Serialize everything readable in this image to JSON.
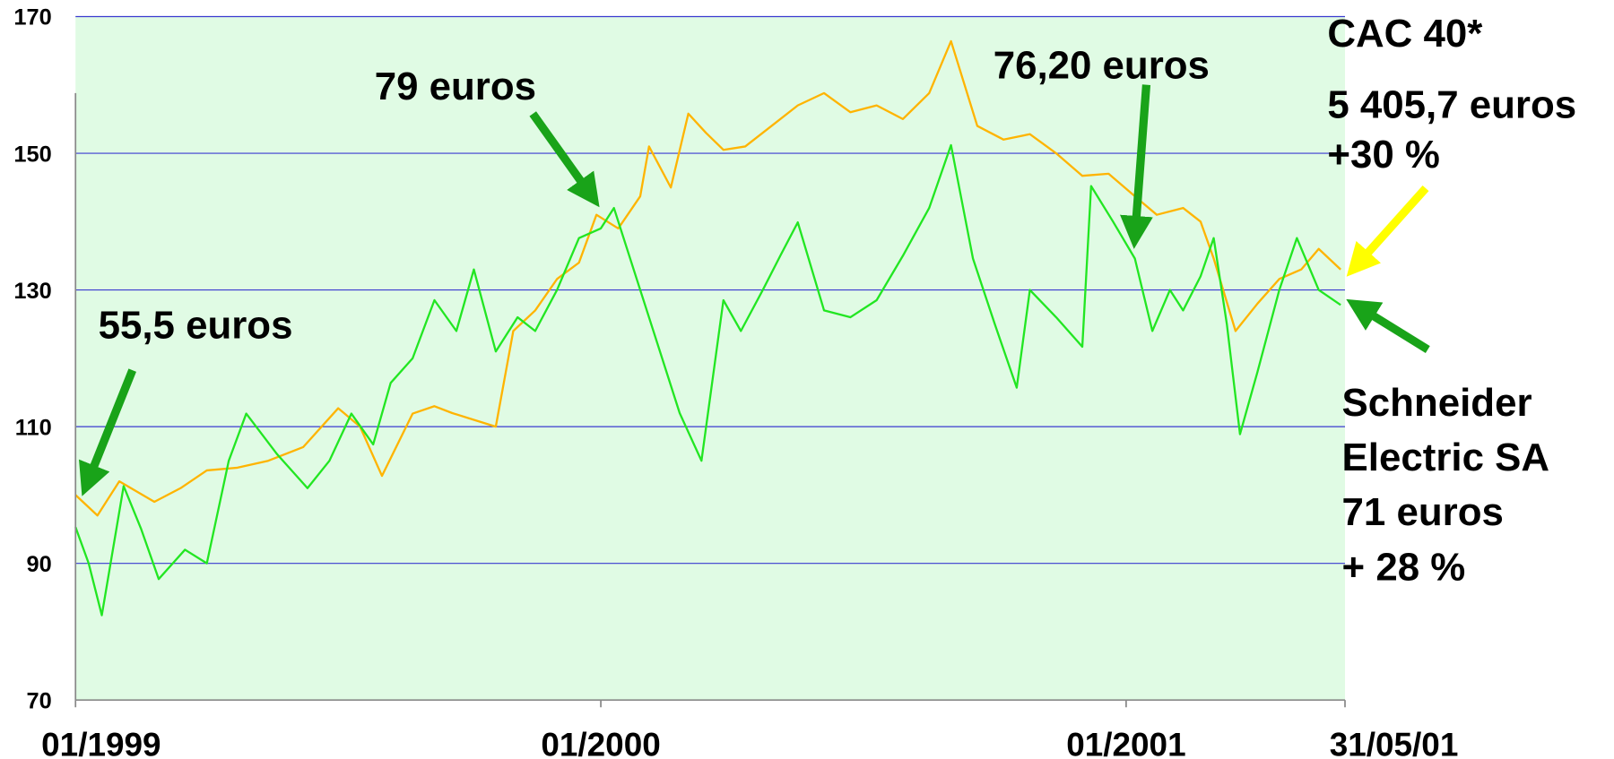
{
  "chart_data": {
    "type": "line",
    "xlim": [
      0,
      29
    ],
    "xticks": [
      {
        "value": 0,
        "label": "01/1999"
      },
      {
        "value": 12,
        "label": "01/2000"
      },
      {
        "value": 24,
        "label": "01/2001"
      },
      {
        "value": 29,
        "label": "31/05/01"
      }
    ],
    "ylim": [
      70,
      170
    ],
    "yticks": [
      70,
      90,
      110,
      130,
      150,
      170
    ],
    "grid": true,
    "series": [
      {
        "name": "CAC 40*",
        "color": "#ffb400",
        "x": [
          0,
          0.5,
          1.0,
          1.8,
          2.4,
          3.0,
          3.7,
          4.4,
          5.2,
          6.0,
          6.5,
          7.0,
          7.7,
          8.2,
          8.6,
          9.1,
          9.6,
          10.0,
          10.5,
          11.0,
          11.5,
          11.9,
          12.4,
          12.9,
          13.1,
          13.6,
          14.0,
          14.4,
          14.8,
          15.3,
          15.9,
          16.5,
          17.1,
          17.7,
          18.3,
          18.9,
          19.5,
          20.0,
          20.6,
          21.2,
          21.8,
          22.4,
          23.0,
          23.6,
          24.2,
          24.7,
          25.3,
          25.7,
          26.0,
          26.5,
          27.0,
          27.5,
          28.0,
          28.4,
          28.9
        ],
        "values": [
          100,
          97,
          102,
          99,
          101,
          103.6,
          104,
          105,
          107,
          112.7,
          110,
          102.8,
          111.9,
          113,
          112,
          111,
          110,
          124,
          127,
          131.6,
          134,
          141,
          139,
          143.7,
          151,
          145,
          155.8,
          153,
          150.5,
          151,
          154,
          157,
          158.8,
          156,
          157,
          155,
          158.8,
          166.4,
          154,
          152,
          152.8,
          150,
          146.7,
          147,
          143.7,
          141,
          142,
          140,
          134.6,
          124,
          128,
          131.6,
          133,
          136,
          133
        ]
      },
      {
        "name": "Schneider Electric SA",
        "color": "#22e622",
        "x": [
          0,
          0.3,
          0.6,
          1.1,
          1.5,
          1.9,
          2.5,
          3.0,
          3.5,
          3.9,
          4.6,
          5.3,
          5.8,
          6.3,
          6.8,
          7.2,
          7.7,
          8.2,
          8.7,
          9.1,
          9.6,
          10.1,
          10.5,
          11.0,
          11.5,
          12.0,
          12.3,
          12.9,
          13.4,
          13.8,
          14.3,
          14.8,
          15.2,
          15.7,
          16.1,
          16.5,
          17.1,
          17.7,
          18.3,
          18.9,
          19.5,
          20.0,
          20.5,
          21.0,
          21.5,
          21.8,
          22.4,
          23.0,
          23.2,
          23.7,
          24.2,
          24.6,
          25.0,
          25.3,
          25.7,
          26.0,
          26.3,
          26.6,
          27.0,
          27.5,
          27.9,
          28.4,
          28.9
        ],
        "values": [
          95.3,
          90,
          82.4,
          101.3,
          95,
          87.7,
          92,
          90,
          105,
          111.9,
          106,
          101,
          105,
          111.9,
          107.4,
          116.4,
          120,
          128.5,
          124,
          133,
          121,
          126,
          124,
          130,
          137.6,
          139,
          142,
          130,
          120,
          112,
          105,
          128.5,
          124,
          130,
          135,
          139.9,
          127,
          126,
          128.5,
          135,
          142,
          151.2,
          134.6,
          125,
          115.7,
          130,
          126,
          121.7,
          145.2,
          140,
          134.6,
          124,
          130,
          127,
          132,
          137.6,
          125,
          108.9,
          118,
          130,
          137.6,
          130,
          127.8
        ]
      }
    ],
    "annotations": [
      "55,5 euros",
      "79 euros",
      "76,20 euros",
      "5 405,7 euros",
      "+30 %",
      "71 euros",
      "+ 28 %"
    ]
  }
}
